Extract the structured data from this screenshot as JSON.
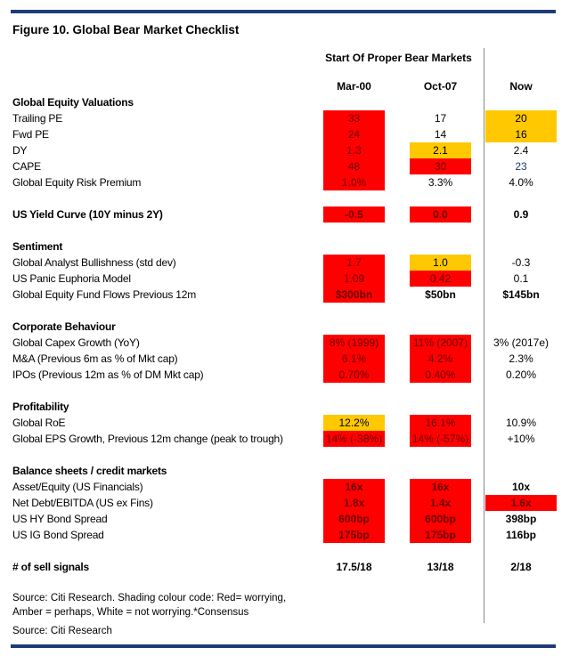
{
  "title": "Figure 10. Global Bear Market Checklist",
  "header_group": "Start Of Proper Bear Markets",
  "columns": [
    "Mar-00",
    "Oct-07",
    "Now"
  ],
  "colors": {
    "red": "#ff0000",
    "amber": "#ffc800",
    "rule": "#1f3a7a"
  },
  "sections": [
    {
      "title": "Global Equity Valuations",
      "rows": [
        {
          "label": "Trailing PE",
          "values": [
            {
              "v": "33",
              "c": "r"
            },
            {
              "v": "17",
              "c": ""
            },
            {
              "v": "20",
              "c": "a"
            }
          ]
        },
        {
          "label": "Fwd PE",
          "values": [
            {
              "v": "24",
              "c": "r"
            },
            {
              "v": "14",
              "c": ""
            },
            {
              "v": "16",
              "c": "a"
            }
          ]
        },
        {
          "label": "DY",
          "values": [
            {
              "v": "1.3",
              "c": "r"
            },
            {
              "v": "2.1",
              "c": "a"
            },
            {
              "v": "2.4",
              "c": ""
            }
          ]
        },
        {
          "label": "CAPE",
          "values": [
            {
              "v": "48",
              "c": "r"
            },
            {
              "v": "30",
              "c": "r"
            },
            {
              "v": "23",
              "c": "b"
            }
          ]
        },
        {
          "label": "Global Equity Risk Premium",
          "values": [
            {
              "v": "1.0%",
              "c": "r"
            },
            {
              "v": "3.3%",
              "c": ""
            },
            {
              "v": "4.0%",
              "c": ""
            }
          ]
        }
      ]
    },
    {
      "title": "US Yield Curve (10Y minus 2Y)",
      "values": [
        {
          "v": "-0.5",
          "c": "r"
        },
        {
          "v": "0.0",
          "c": "r"
        },
        {
          "v": "0.9",
          "c": ""
        }
      ],
      "rows": []
    },
    {
      "title": "Sentiment",
      "rows": [
        {
          "label": "Global Analyst Bullishness (std dev)",
          "values": [
            {
              "v": "1.7",
              "c": "r"
            },
            {
              "v": "1.0",
              "c": "a"
            },
            {
              "v": "-0.3",
              "c": ""
            }
          ]
        },
        {
          "label": "US Panic Euphoria Model",
          "values": [
            {
              "v": "1.09",
              "c": "r"
            },
            {
              "v": "0.42",
              "c": "r"
            },
            {
              "v": "0.1",
              "c": ""
            }
          ]
        },
        {
          "label": "Global Equity Fund Flows Previous 12m",
          "bold": true,
          "values": [
            {
              "v": "$300bn",
              "c": "r"
            },
            {
              "v": "$50bn",
              "c": ""
            },
            {
              "v": "$145bn",
              "c": ""
            }
          ]
        }
      ]
    },
    {
      "title": "Corporate Behaviour",
      "rows": [
        {
          "label": "Global Capex Growth (YoY)",
          "values": [
            {
              "v": "8% (1999)",
              "c": "r"
            },
            {
              "v": "11% (2007)",
              "c": "r"
            },
            {
              "v": "3% (2017e)",
              "c": ""
            }
          ]
        },
        {
          "label": "M&A (Previous 6m as % of Mkt cap)",
          "values": [
            {
              "v": "6.1%",
              "c": "r"
            },
            {
              "v": "4.2%",
              "c": "r"
            },
            {
              "v": "2.3%",
              "c": ""
            }
          ]
        },
        {
          "label": "IPOs (Previous 12m as % of DM Mkt cap)",
          "values": [
            {
              "v": "0.70%",
              "c": "r"
            },
            {
              "v": "0.40%",
              "c": "r"
            },
            {
              "v": "0.20%",
              "c": ""
            }
          ]
        }
      ]
    },
    {
      "title": "Profitability",
      "rows": [
        {
          "label": "Global RoE",
          "values": [
            {
              "v": "12.2%",
              "c": "a"
            },
            {
              "v": "16.1%",
              "c": "r"
            },
            {
              "v": "10.9%",
              "c": ""
            }
          ]
        },
        {
          "label": "Global EPS Growth, Previous 12m change (peak to trough)",
          "values": [
            {
              "v": "14% (-38%)",
              "c": "r"
            },
            {
              "v": "14% (-57%)",
              "c": "r"
            },
            {
              "v": "+10%",
              "c": ""
            }
          ]
        }
      ]
    },
    {
      "title": "Balance sheets / credit markets",
      "rows": [
        {
          "label": "Asset/Equity (US Financials)",
          "bold": true,
          "values": [
            {
              "v": "16x",
              "c": "r"
            },
            {
              "v": "16x",
              "c": "r"
            },
            {
              "v": "10x",
              "c": ""
            }
          ]
        },
        {
          "label": "Net Debt/EBITDA (US ex Fins)",
          "bold": true,
          "values": [
            {
              "v": "1.8x",
              "c": "r"
            },
            {
              "v": "1.4x",
              "c": "r"
            },
            {
              "v": "1.6x",
              "c": "r"
            }
          ]
        },
        {
          "label": "US HY Bond Spread",
          "bold": true,
          "values": [
            {
              "v": "600bp",
              "c": "r"
            },
            {
              "v": "600bp",
              "c": "r"
            },
            {
              "v": "398bp",
              "c": ""
            }
          ]
        },
        {
          "label": "US IG Bond Spread",
          "bold": true,
          "values": [
            {
              "v": "175bp",
              "c": "r"
            },
            {
              "v": "175bp",
              "c": "r"
            },
            {
              "v": "116bp",
              "c": ""
            }
          ]
        }
      ]
    },
    {
      "title": "# of sell signals",
      "values": [
        {
          "v": "17.5/18",
          "c": ""
        },
        {
          "v": "13/18",
          "c": ""
        },
        {
          "v": "2/18",
          "c": ""
        }
      ],
      "rows": []
    }
  ],
  "notes": [
    "Source: Citi Research. Shading colour code: Red= worrying,",
    "Amber = perhaps, White = not worrying.*Consensus"
  ],
  "source": "Source: Citi Research"
}
